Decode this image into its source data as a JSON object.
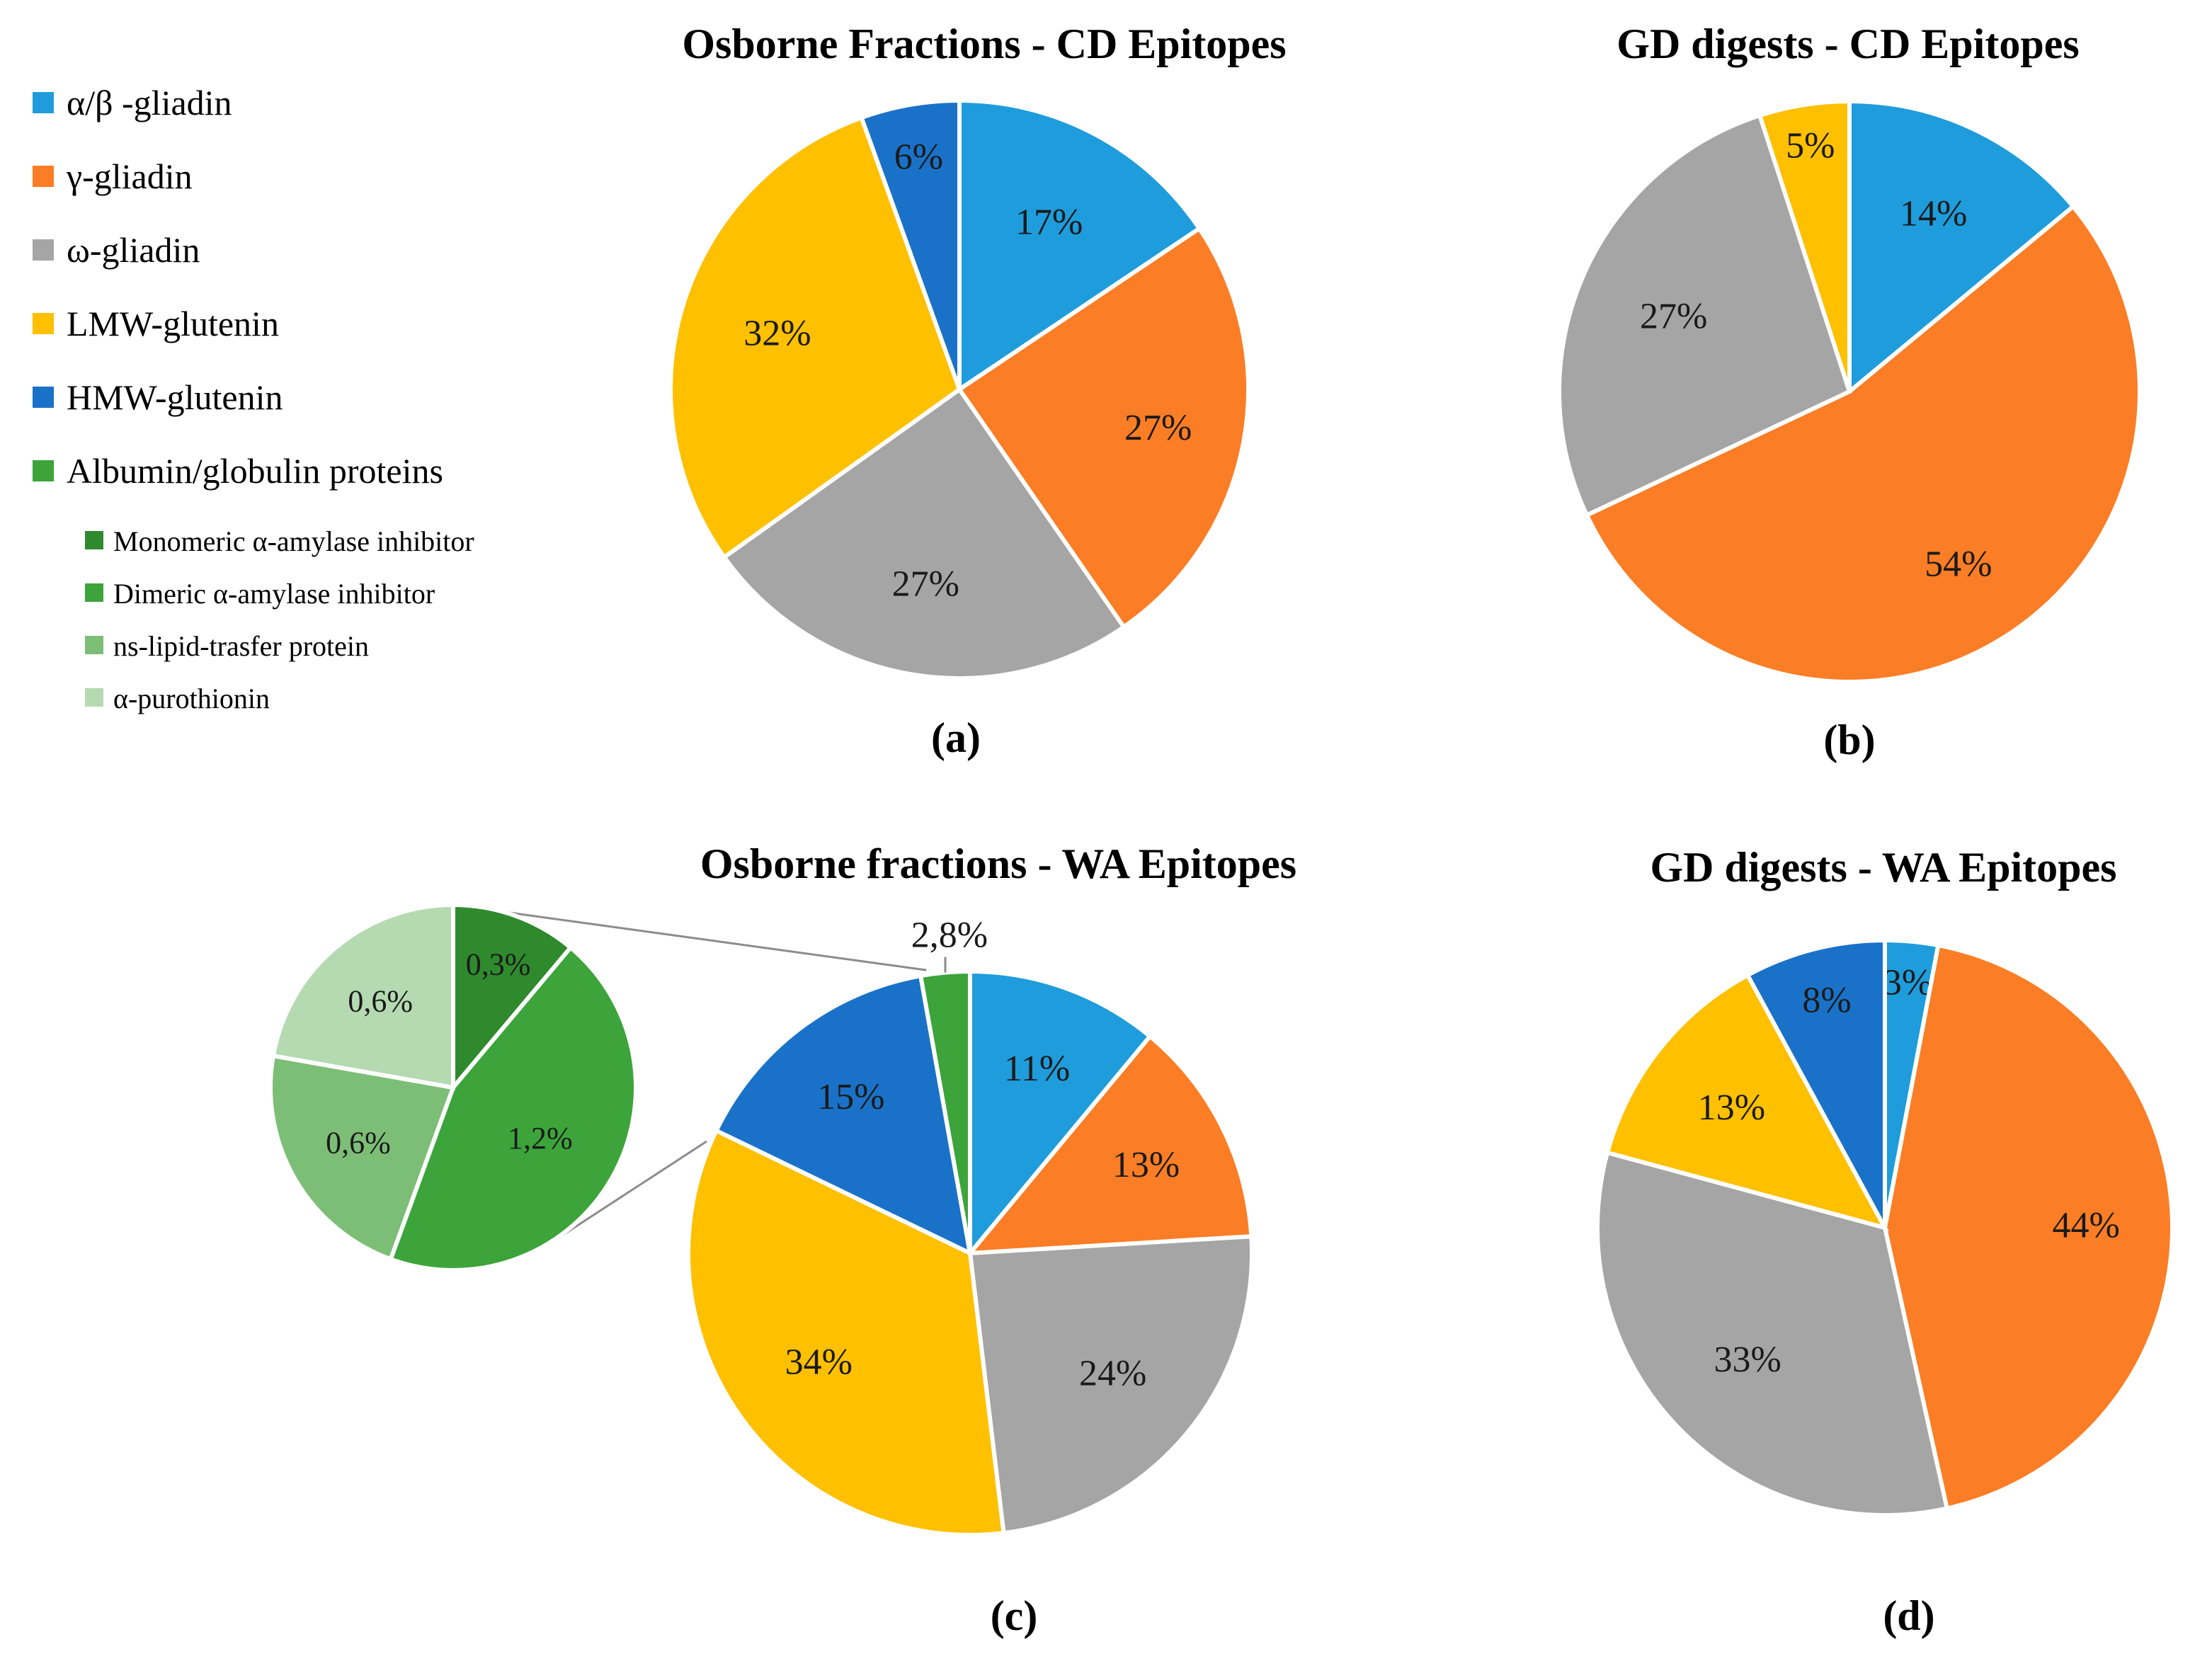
{
  "legend": {
    "main": [
      {
        "label": "α/β -gliadin",
        "color": "#1F9CDB"
      },
      {
        "label": "γ-gliadin",
        "color": "#FB7D25"
      },
      {
        "label": "ω-gliadin",
        "color": "#A5A5A5"
      },
      {
        "label": "LMW-glutenin",
        "color": "#FFC000"
      },
      {
        "label": "HMW-glutenin",
        "color": "#1A72C8"
      },
      {
        "label": "Albumin/globulin proteins",
        "color": "#3CA43A"
      }
    ],
    "sub": [
      {
        "label": "Monomeric α-amylase inhibitor",
        "color": "#2F8A2E"
      },
      {
        "label": "Dimeric α-amylase inhibitor",
        "color": "#3CA43A"
      },
      {
        "label": "ns-lipid-trasfer protein",
        "color": "#7DBE77"
      },
      {
        "label": " α-purothionin",
        "color": "#B5DAB1"
      }
    ]
  },
  "chart_data": [
    {
      "type": "pie",
      "panel": "(a)",
      "title": "Osborne Fractions - CD Epitopes",
      "slices": [
        {
          "name": "α/β -gliadin",
          "value": 17,
          "label": "17%",
          "color": "#1F9CDB"
        },
        {
          "name": "γ-gliadin",
          "value": 27,
          "label": "27%",
          "color": "#FB7D25"
        },
        {
          "name": "ω-gliadin",
          "value": 27,
          "label": "27%",
          "color": "#A5A5A5"
        },
        {
          "name": "LMW-glutenin",
          "value": 32,
          "label": "32%",
          "color": "#FFC000"
        },
        {
          "name": "HMW-glutenin",
          "value": 6,
          "label": "6%",
          "color": "#1A72C8"
        }
      ]
    },
    {
      "type": "pie",
      "panel": "(b)",
      "title": "GD digests - CD Epitopes",
      "slices": [
        {
          "name": "α/β -gliadin",
          "value": 14,
          "label": "14%",
          "color": "#1F9CDB"
        },
        {
          "name": "γ-gliadin",
          "value": 54,
          "label": "54%",
          "color": "#FB7D25"
        },
        {
          "name": "ω-gliadin",
          "value": 27,
          "label": "27%",
          "color": "#A5A5A5"
        },
        {
          "name": "LMW-glutenin",
          "value": 5,
          "label": "5%",
          "color": "#FFC000"
        }
      ]
    },
    {
      "type": "pie",
      "panel": "(c)",
      "title": "Osborne fractions - WA Epitopes",
      "slices": [
        {
          "name": "α/β -gliadin",
          "value": 11,
          "label": "11%",
          "color": "#1F9CDB"
        },
        {
          "name": "γ-gliadin",
          "value": 13,
          "label": "13%",
          "color": "#FB7D25"
        },
        {
          "name": "ω-gliadin",
          "value": 24,
          "label": "24%",
          "color": "#A5A5A5"
        },
        {
          "name": "LMW-glutenin",
          "value": 34,
          "label": "34%",
          "color": "#FFC000"
        },
        {
          "name": "HMW-glutenin",
          "value": 15,
          "label": "15%",
          "color": "#1A72C8"
        },
        {
          "name": "Albumin/globulin proteins",
          "value": 2.8,
          "label": "2,8%",
          "color": "#3CA43A"
        }
      ],
      "breakout": [
        {
          "name": "Monomeric α-amylase inhibitor",
          "value": 0.3,
          "label": "0,3%",
          "color": "#2F8A2E"
        },
        {
          "name": "Dimeric α-amylase inhibitor",
          "value": 1.2,
          "label": "1,2%",
          "color": "#3CA43A"
        },
        {
          "name": "ns-lipid-trasfer protein",
          "value": 0.6,
          "label": "0,6%",
          "color": "#7DBE77"
        },
        {
          "name": " α-purothionin",
          "value": 0.6,
          "label": "0,6%",
          "color": "#B5DAB1"
        }
      ]
    },
    {
      "type": "pie",
      "panel": "(d)",
      "title": "GD digests - WA Epitopes",
      "slices": [
        {
          "name": "α/β -gliadin",
          "value": 3,
          "label": "3%",
          "color": "#1F9CDB"
        },
        {
          "name": "γ-gliadin",
          "value": 44,
          "label": "44%",
          "color": "#FB7D25"
        },
        {
          "name": "ω-gliadin",
          "value": 33,
          "label": "33%",
          "color": "#A5A5A5"
        },
        {
          "name": "LMW-glutenin",
          "value": 13,
          "label": "13%",
          "color": "#FFC000"
        },
        {
          "name": "HMW-glutenin",
          "value": 8,
          "label": "8%",
          "color": "#1A72C8"
        }
      ]
    }
  ]
}
